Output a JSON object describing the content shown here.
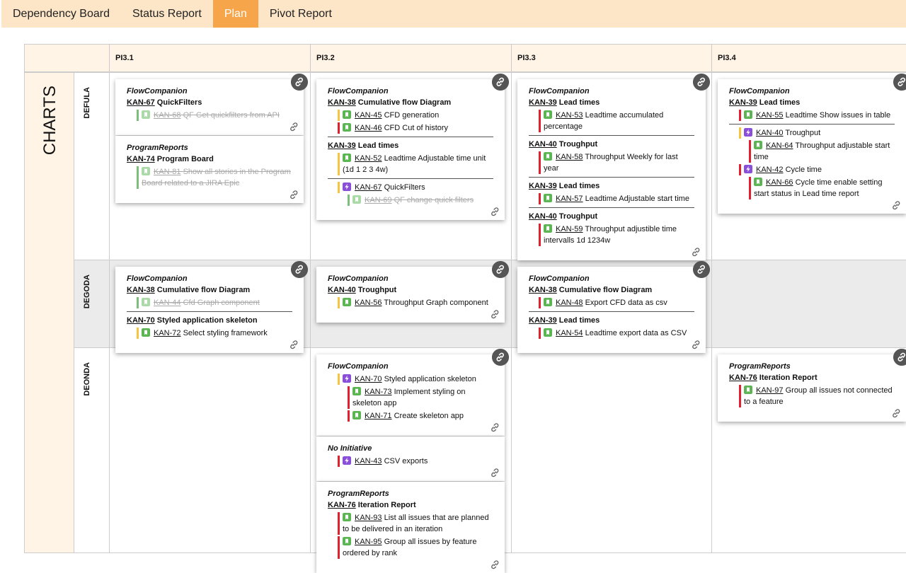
{
  "tabs": [
    {
      "label": "Dependency Board",
      "active": false
    },
    {
      "label": "Status Report",
      "active": false
    },
    {
      "label": "Plan",
      "active": true
    },
    {
      "label": "Pivot Report",
      "active": false
    }
  ],
  "board": {
    "group": "CHARTS",
    "columns": [
      "PI3.1",
      "PI3.2",
      "PI3.3",
      "PI3.4"
    ],
    "rows": [
      {
        "name": "DEFULA",
        "cells": [
          [
            {
              "initiative": "FlowCompanion",
              "groups": [
                {
                  "epic": {
                    "key": "KAN-67",
                    "title": "QuickFilters"
                  },
                  "items": [
                    {
                      "key": "KAN-68",
                      "title": "QF Get quickfilters from API",
                      "icon": "story",
                      "bar": "green",
                      "done": true
                    }
                  ]
                }
              ]
            },
            {
              "initiative": "ProgramReports",
              "groups": [
                {
                  "epic": {
                    "key": "KAN-74",
                    "title": "Program Board"
                  },
                  "items": [
                    {
                      "key": "KAN-81",
                      "title": "Show all stories in the Program Board related to a JIRA Epic",
                      "icon": "story",
                      "bar": "green",
                      "done": true
                    }
                  ]
                }
              ]
            }
          ],
          [
            {
              "initiative": "FlowCompanion",
              "groups": [
                {
                  "epic": {
                    "key": "KAN-38",
                    "title": "Cumulative flow Diagram"
                  },
                  "items": [
                    {
                      "key": "KAN-45",
                      "title": "CFD generation",
                      "icon": "story",
                      "bar": "yellow",
                      "done": false
                    },
                    {
                      "key": "KAN-46",
                      "title": "CFD Cut of history",
                      "icon": "story",
                      "bar": "red",
                      "done": false
                    }
                  ]
                },
                {
                  "epic": {
                    "key": "KAN-39",
                    "title": "Lead times"
                  },
                  "items": [
                    {
                      "key": "KAN-52",
                      "title": "Leadtime Adjustable time unit (1d 1 2 3 4w)",
                      "icon": "story",
                      "bar": "yellow",
                      "done": false
                    }
                  ]
                },
                {
                  "items": [
                    {
                      "key": "KAN-67",
                      "title": "QuickFilters",
                      "icon": "feature",
                      "bar": "yellow",
                      "done": false,
                      "children": [
                        {
                          "key": "KAN-69",
                          "title": "QF change quick filters",
                          "icon": "story",
                          "bar": "green",
                          "done": true
                        }
                      ]
                    }
                  ]
                }
              ]
            }
          ],
          [
            {
              "initiative": "FlowCompanion",
              "groups": [
                {
                  "epic": {
                    "key": "KAN-39",
                    "title": "Lead times"
                  },
                  "items": [
                    {
                      "key": "KAN-53",
                      "title": "Leadtime accumulated percentage",
                      "icon": "story",
                      "bar": "red",
                      "done": false
                    }
                  ]
                },
                {
                  "epic": {
                    "key": "KAN-40",
                    "title": "Troughput"
                  },
                  "items": [
                    {
                      "key": "KAN-58",
                      "title": "Throughput Weekly for last year",
                      "icon": "story",
                      "bar": "red",
                      "done": false
                    }
                  ]
                },
                {
                  "epic": {
                    "key": "KAN-39",
                    "title": "Lead times"
                  },
                  "items": [
                    {
                      "key": "KAN-57",
                      "title": "Leadtime Adjustable start time",
                      "icon": "story",
                      "bar": "red",
                      "done": false
                    }
                  ]
                },
                {
                  "epic": {
                    "key": "KAN-40",
                    "title": "Troughput"
                  },
                  "items": [
                    {
                      "key": "KAN-59",
                      "title": "Throughput adjustible time intervalls 1d 1234w",
                      "icon": "story",
                      "bar": "red",
                      "done": false
                    }
                  ]
                }
              ]
            }
          ],
          [
            {
              "initiative": "FlowCompanion",
              "groups": [
                {
                  "epic": {
                    "key": "KAN-39",
                    "title": "Lead times"
                  },
                  "items": [
                    {
                      "key": "KAN-55",
                      "title": "Leadtime Show issues in table",
                      "icon": "story",
                      "bar": "red",
                      "done": false
                    }
                  ]
                },
                {
                  "items": [
                    {
                      "key": "KAN-40",
                      "title": "Troughput",
                      "icon": "feature",
                      "bar": "yellow",
                      "done": false,
                      "children": [
                        {
                          "key": "KAN-64",
                          "title": "Throughput adjustable start time",
                          "icon": "story",
                          "bar": "red",
                          "done": false
                        }
                      ]
                    },
                    {
                      "key": "KAN-42",
                      "title": "Cycle time",
                      "icon": "feature",
                      "bar": "red",
                      "done": false,
                      "children": [
                        {
                          "key": "KAN-66",
                          "title": "Cycle time enable setting start status in Lead time report",
                          "icon": "story",
                          "bar": "red",
                          "done": false
                        }
                      ]
                    }
                  ]
                }
              ]
            }
          ]
        ]
      },
      {
        "name": "DEGODA",
        "cells": [
          [
            {
              "initiative": "FlowCompanion",
              "groups": [
                {
                  "epic": {
                    "key": "KAN-38",
                    "title": "Cumulative flow Diagram"
                  },
                  "items": [
                    {
                      "key": "KAN-44",
                      "title": "Cfd Graph component",
                      "icon": "story",
                      "bar": "green",
                      "done": true
                    }
                  ]
                },
                {
                  "epic": {
                    "key": "KAN-70",
                    "title": "Styled application skeleton"
                  },
                  "items": [
                    {
                      "key": "KAN-72",
                      "title": "Select styling framework",
                      "icon": "story",
                      "bar": "yellow",
                      "done": false
                    }
                  ]
                }
              ]
            }
          ],
          [
            {
              "initiative": "FlowCompanion",
              "groups": [
                {
                  "epic": {
                    "key": "KAN-40",
                    "title": "Troughput"
                  },
                  "items": [
                    {
                      "key": "KAN-56",
                      "title": "Throughput Graph component",
                      "icon": "story",
                      "bar": "yellow",
                      "done": false
                    }
                  ]
                }
              ]
            }
          ],
          [
            {
              "initiative": "FlowCompanion",
              "groups": [
                {
                  "epic": {
                    "key": "KAN-38",
                    "title": "Cumulative flow Diagram"
                  },
                  "items": [
                    {
                      "key": "KAN-48",
                      "title": "Export CFD data as csv",
                      "icon": "story",
                      "bar": "red",
                      "done": false
                    }
                  ]
                },
                {
                  "epic": {
                    "key": "KAN-39",
                    "title": "Lead times"
                  },
                  "items": [
                    {
                      "key": "KAN-54",
                      "title": "Leadtime export data as CSV",
                      "icon": "story",
                      "bar": "red",
                      "done": false
                    }
                  ]
                }
              ]
            }
          ],
          []
        ]
      },
      {
        "name": "DEONDA",
        "cells": [
          [],
          [
            {
              "initiative": "FlowCompanion",
              "groups": [
                {
                  "items": [
                    {
                      "key": "KAN-70",
                      "title": "Styled application skeleton",
                      "icon": "feature",
                      "bar": "yellow",
                      "done": false,
                      "children": [
                        {
                          "key": "KAN-73",
                          "title": "Implement styling on skeleton app",
                          "icon": "story",
                          "bar": "red",
                          "done": false
                        },
                        {
                          "key": "KAN-71",
                          "title": "Create skeleton app",
                          "icon": "story",
                          "bar": "red",
                          "done": false
                        }
                      ]
                    }
                  ]
                }
              ]
            },
            {
              "initiative": "No Initiative",
              "groups": [
                {
                  "items": [
                    {
                      "key": "KAN-43",
                      "title": "CSV exports",
                      "icon": "feature",
                      "bar": "red",
                      "done": false
                    }
                  ]
                }
              ]
            },
            {
              "initiative": "ProgramReports",
              "groups": [
                {
                  "epic": {
                    "key": "KAN-76",
                    "title": "Iteration Report"
                  },
                  "items": [
                    {
                      "key": "KAN-93",
                      "title": "List all issues that are planned to be delivered in an iteration",
                      "icon": "story",
                      "bar": "red",
                      "done": false
                    },
                    {
                      "key": "KAN-95",
                      "title": "Group all issues by feature ordered by rank",
                      "icon": "story",
                      "bar": "red",
                      "done": false
                    }
                  ]
                }
              ]
            }
          ],
          [],
          [
            {
              "initiative": "ProgramReports",
              "groups": [
                {
                  "epic": {
                    "key": "KAN-76",
                    "title": "Iteration Report"
                  },
                  "items": [
                    {
                      "key": "KAN-97",
                      "title": "Group all issues not connected to a feature",
                      "icon": "story",
                      "bar": "red",
                      "done": false
                    }
                  ]
                }
              ]
            }
          ]
        ]
      }
    ]
  }
}
